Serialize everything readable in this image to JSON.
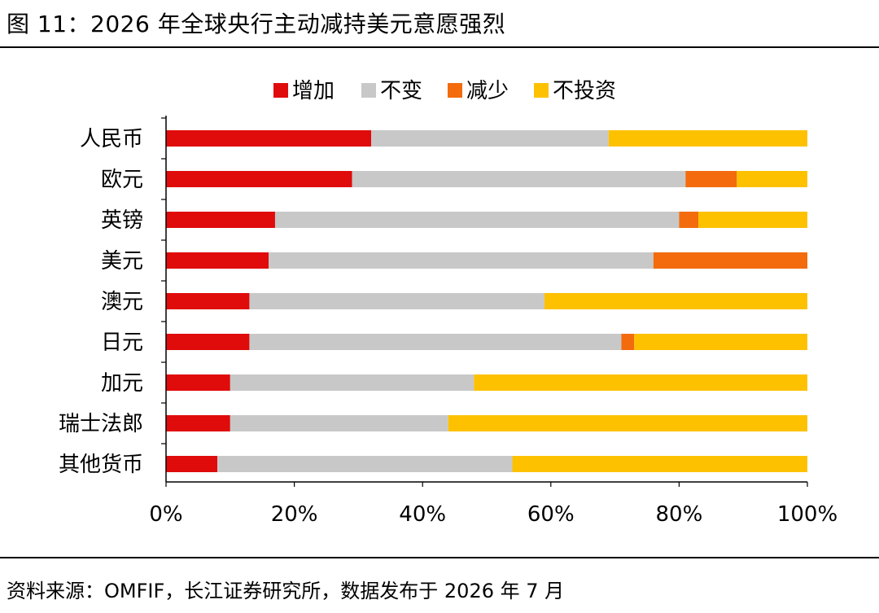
{
  "figure": {
    "title": "图 11：2026 年全球央行主动减持美元意愿强烈",
    "source": "资料来源：OMFIF，长江证券研究所，数据发布于 2026 年 7 月"
  },
  "chart_data": {
    "type": "bar",
    "orientation": "horizontal",
    "stacked": "percent",
    "title": "",
    "xlabel": "",
    "ylabel": "",
    "xlim": [
      0,
      100
    ],
    "x_ticks": [
      "0%",
      "20%",
      "40%",
      "60%",
      "80%",
      "100%"
    ],
    "grid": false,
    "legend_position": "top-center",
    "categories": [
      "人民币",
      "欧元",
      "英镑",
      "美元",
      "澳元",
      "日元",
      "加元",
      "瑞士法郎",
      "其他货币"
    ],
    "series": [
      {
        "name": "增加",
        "color": "#e00b0b",
        "values": [
          32,
          29,
          17,
          16,
          13,
          13,
          10,
          10,
          8
        ]
      },
      {
        "name": "不变",
        "color": "#c8c8c8",
        "values": [
          37,
          52,
          63,
          60,
          46,
          58,
          38,
          34,
          46
        ]
      },
      {
        "name": "减少",
        "color": "#f36b0d",
        "values": [
          0,
          8,
          3,
          24,
          0,
          2,
          0,
          0,
          0
        ]
      },
      {
        "name": "不投资",
        "color": "#fdc100",
        "values": [
          31,
          11,
          17,
          0,
          41,
          27,
          52,
          56,
          46
        ]
      }
    ]
  }
}
